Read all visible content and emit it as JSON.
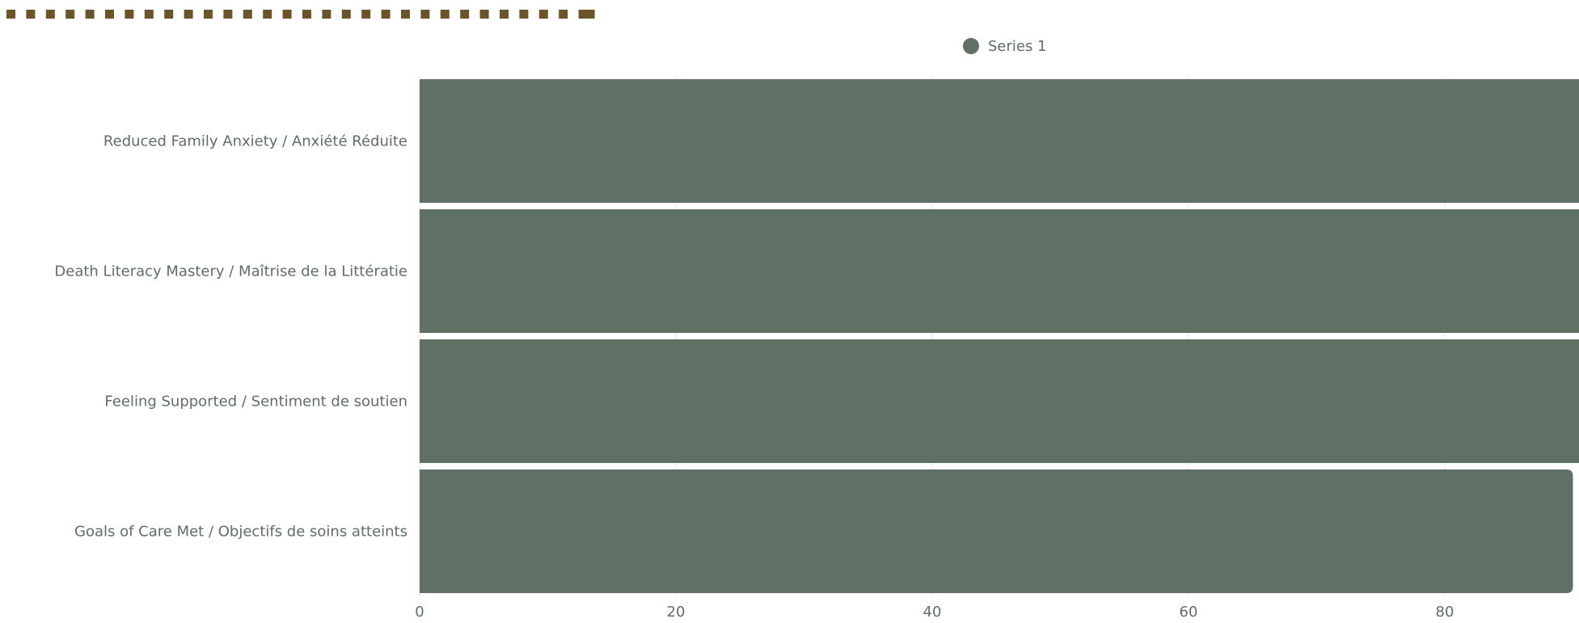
{
  "colors": {
    "bar": "#5f7064",
    "accent": "#6b5528",
    "text": "#5f6f64",
    "grid": "#e6e6e6"
  },
  "decoration": {
    "dash_count": 30
  },
  "chart_data": {
    "type": "bar",
    "orientation": "horizontal",
    "categories": [
      "Reduced Family Anxiety / Anxiété Réduite",
      "Death Literacy Mastery / Maîtrise de la Littératie",
      "Feeling Supported / Sentiment de soutien",
      "Goals of Care Met / Objectifs de soins atteints"
    ],
    "series": [
      {
        "name": "Series 1",
        "values": [
          95,
          98,
          100,
          90
        ]
      }
    ],
    "xlim": [
      0,
      100
    ],
    "x_ticks": [
      0,
      20,
      40,
      60,
      80
    ],
    "grid": true,
    "legend_position": "top"
  }
}
